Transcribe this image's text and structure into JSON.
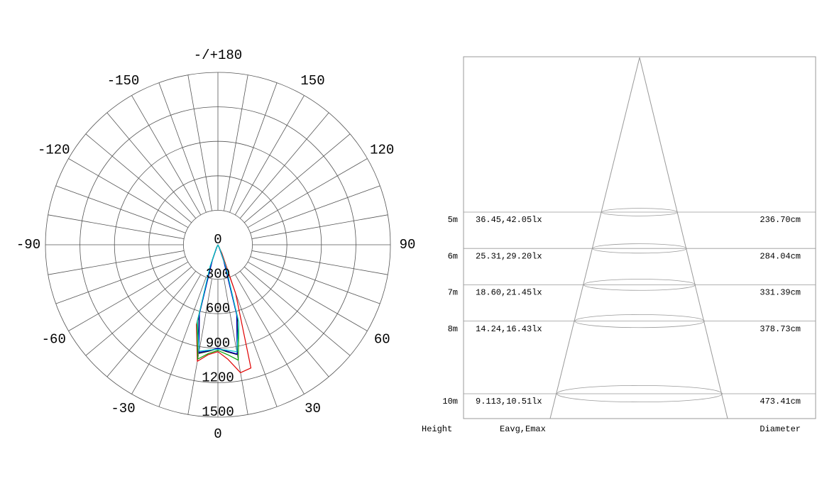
{
  "chart_data": {
    "type": "polar",
    "x": [
      -30,
      -25,
      -20,
      -15,
      -10,
      -5,
      0,
      5,
      10,
      15,
      20,
      25,
      30
    ],
    "series": [
      {
        "color": "#e00000",
        "values": [
          0,
          30,
          160,
          720,
          1030,
          960,
          930,
          1000,
          1130,
          1110,
          450,
          80,
          0
        ]
      },
      {
        "color": "#00a000",
        "values": [
          0,
          30,
          150,
          700,
          1010,
          950,
          920,
          960,
          1020,
          700,
          160,
          30,
          0
        ]
      },
      {
        "color": "#000000",
        "values": [
          0,
          25,
          140,
          640,
          960,
          930,
          905,
          935,
          970,
          650,
          150,
          25,
          0
        ]
      },
      {
        "color": "#0000c0",
        "values": [
          0,
          25,
          140,
          620,
          950,
          925,
          900,
          930,
          965,
          630,
          145,
          25,
          0
        ]
      },
      {
        "color": "#00c8c8",
        "values": [
          0,
          40,
          200,
          690,
          940,
          920,
          910,
          920,
          945,
          700,
          200,
          40,
          0
        ]
      }
    ],
    "rlim": [
      0,
      1500
    ],
    "rticks": [
      0,
      300,
      600,
      900,
      1200,
      1500
    ],
    "angle_ticks": [
      {
        "value": 180,
        "label": "-/+180"
      },
      -150,
      -120,
      -90,
      -60,
      -30,
      0,
      30,
      60,
      90,
      120,
      150
    ],
    "angle_grid_step": 10
  },
  "cone": {
    "rows": [
      {
        "height": "5m",
        "illuminance": "36.45,42.05lx",
        "diameter": "236.70cm"
      },
      {
        "height": "6m",
        "illuminance": "25.31,29.20lx",
        "diameter": "284.04cm"
      },
      {
        "height": "7m",
        "illuminance": "18.60,21.45lx",
        "diameter": "331.39cm"
      },
      {
        "height": "8m",
        "illuminance": "14.24,16.43lx",
        "diameter": "378.73cm"
      },
      {
        "height": "10m",
        "illuminance": "9.113,10.51lx",
        "diameter": "473.41cm"
      }
    ],
    "headers": {
      "height": "Height",
      "illuminance": "Eavg,Emax",
      "diameter": "Diameter"
    }
  }
}
